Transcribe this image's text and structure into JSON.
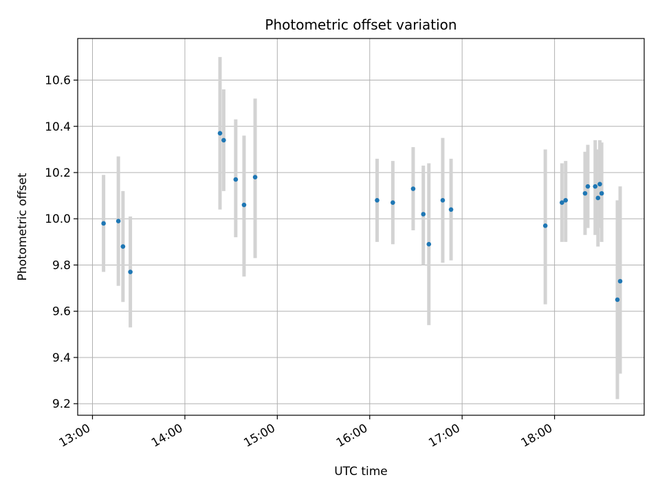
{
  "chart_data": {
    "type": "scatter",
    "title": "Photometric offset variation",
    "xlabel": "UTC time",
    "ylabel": "Photometric offset",
    "x_unit": "UTC hours",
    "xlim": [
      12.84,
      18.97
    ],
    "ylim": [
      9.15,
      10.78
    ],
    "x_ticks": [
      13,
      14,
      15,
      16,
      17,
      18
    ],
    "x_tick_labels": [
      "13:00",
      "14:00",
      "15:00",
      "16:00",
      "17:00",
      "18:00"
    ],
    "y_ticks": [
      9.2,
      9.4,
      9.6,
      9.8,
      10.0,
      10.2,
      10.4,
      10.6
    ],
    "y_tick_labels": [
      "9.2",
      "9.4",
      "9.6",
      "9.8",
      "10.0",
      "10.2",
      "10.4",
      "10.6"
    ],
    "grid": true,
    "colors": {
      "point": "#1f77b4",
      "errorbar": "#d3d3d3",
      "grid": "#b0b0b0"
    },
    "points": [
      {
        "x": 13.12,
        "y": 9.98,
        "ylow": 9.77,
        "yhigh": 10.19
      },
      {
        "x": 13.28,
        "y": 9.99,
        "ylow": 9.71,
        "yhigh": 10.27
      },
      {
        "x": 13.33,
        "y": 9.88,
        "ylow": 9.64,
        "yhigh": 10.12
      },
      {
        "x": 13.41,
        "y": 9.77,
        "ylow": 9.53,
        "yhigh": 10.01
      },
      {
        "x": 14.38,
        "y": 10.37,
        "ylow": 10.04,
        "yhigh": 10.7
      },
      {
        "x": 14.42,
        "y": 10.34,
        "ylow": 10.12,
        "yhigh": 10.56
      },
      {
        "x": 14.55,
        "y": 10.17,
        "ylow": 9.92,
        "yhigh": 10.43
      },
      {
        "x": 14.64,
        "y": 10.06,
        "ylow": 9.75,
        "yhigh": 10.36
      },
      {
        "x": 14.76,
        "y": 10.18,
        "ylow": 9.83,
        "yhigh": 10.52
      },
      {
        "x": 16.08,
        "y": 10.08,
        "ylow": 9.9,
        "yhigh": 10.26
      },
      {
        "x": 16.25,
        "y": 10.07,
        "ylow": 9.89,
        "yhigh": 10.25
      },
      {
        "x": 16.47,
        "y": 10.13,
        "ylow": 9.95,
        "yhigh": 10.31
      },
      {
        "x": 16.58,
        "y": 10.02,
        "ylow": 9.8,
        "yhigh": 10.23
      },
      {
        "x": 16.64,
        "y": 9.89,
        "ylow": 9.54,
        "yhigh": 10.24
      },
      {
        "x": 16.79,
        "y": 10.08,
        "ylow": 9.81,
        "yhigh": 10.35
      },
      {
        "x": 16.88,
        "y": 10.04,
        "ylow": 9.82,
        "yhigh": 10.26
      },
      {
        "x": 17.9,
        "y": 9.97,
        "ylow": 9.63,
        "yhigh": 10.3
      },
      {
        "x": 18.08,
        "y": 10.07,
        "ylow": 9.9,
        "yhigh": 10.24
      },
      {
        "x": 18.12,
        "y": 10.08,
        "ylow": 9.9,
        "yhigh": 10.25
      },
      {
        "x": 18.33,
        "y": 10.11,
        "ylow": 9.93,
        "yhigh": 10.29
      },
      {
        "x": 18.36,
        "y": 10.14,
        "ylow": 9.96,
        "yhigh": 10.32
      },
      {
        "x": 18.44,
        "y": 10.14,
        "ylow": 9.93,
        "yhigh": 10.34
      },
      {
        "x": 18.47,
        "y": 10.09,
        "ylow": 9.88,
        "yhigh": 10.3
      },
      {
        "x": 18.49,
        "y": 10.15,
        "ylow": 9.96,
        "yhigh": 10.34
      },
      {
        "x": 18.51,
        "y": 10.11,
        "ylow": 9.9,
        "yhigh": 10.33
      },
      {
        "x": 18.68,
        "y": 9.65,
        "ylow": 9.22,
        "yhigh": 10.08
      },
      {
        "x": 18.71,
        "y": 9.73,
        "ylow": 9.33,
        "yhigh": 10.14
      }
    ]
  }
}
